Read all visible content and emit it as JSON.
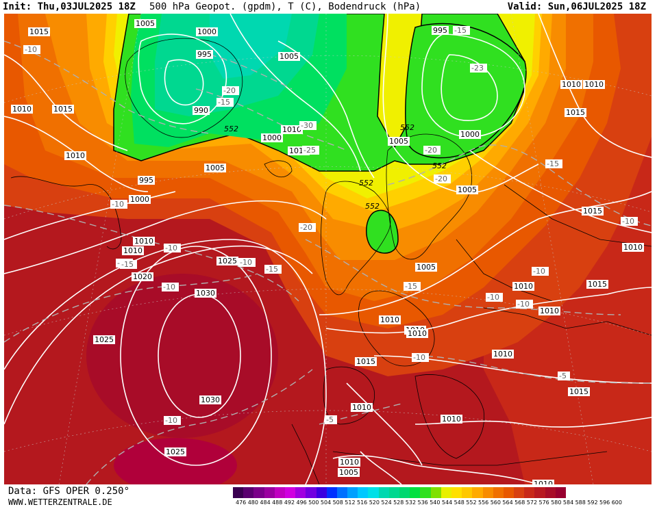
{
  "header": {
    "init": "Init: Thu,03JUL2025 18Z",
    "title": "500 hPa Geopot. (gpdm), T (C), Bodendruck (hPa)",
    "valid": "Valid: Sun,06JUL2025 18Z"
  },
  "footer": {
    "data_source": "Data: GFS OPER 0.250°",
    "website": "WWW.WETTERZENTRALE.DE"
  },
  "legend": {
    "ticks": [
      "476",
      "480",
      "484",
      "488",
      "492",
      "496",
      "500",
      "504",
      "508",
      "512",
      "516",
      "520",
      "524",
      "528",
      "532",
      "536",
      "540",
      "544",
      "548",
      "552",
      "556",
      "560",
      "564",
      "568",
      "572",
      "576",
      "580",
      "584",
      "588",
      "592",
      "596",
      "600"
    ],
    "colors": [
      "#3a0050",
      "#5a0070",
      "#7a008a",
      "#9a00a0",
      "#c000c0",
      "#d000e0",
      "#a000e0",
      "#7000e0",
      "#3a00e0",
      "#0030ff",
      "#0070ff",
      "#00a0ff",
      "#00c8ff",
      "#00e0e8",
      "#00d8b0",
      "#00d890",
      "#00d870",
      "#00e040",
      "#30e020",
      "#80e000",
      "#e8f000",
      "#ffe000",
      "#ffc800",
      "#ffaa00",
      "#f88c00",
      "#f07000",
      "#e85800",
      "#d84010",
      "#c82818",
      "#b81820",
      "#a80c28",
      "#980030"
    ]
  },
  "map": {
    "pressure_labels": [
      "1015",
      "1005",
      "1000",
      "995",
      "1010",
      "1015",
      "1005",
      "990",
      "995",
      "1000",
      "1010",
      "1005",
      "1000",
      "1010",
      "1005",
      "1010",
      "1005",
      "995",
      "1000",
      "1010",
      "1015",
      "1015",
      "1020",
      "1025",
      "1030",
      "1025",
      "1030",
      "1025",
      "1015",
      "1010",
      "1010",
      "1010",
      "1005",
      "1010",
      "1010",
      "1010",
      "1015",
      "1010",
      "1010",
      "1010",
      "1015",
      "1010",
      "1010",
      "1010",
      "1005",
      "1010",
      "1010"
    ],
    "temp_labels": [
      "-10",
      "-20",
      "-15",
      "-30",
      "-25",
      "-23",
      "-15",
      "-20",
      "-20",
      "-15",
      "-10",
      "-15",
      "-10",
      "-10",
      "-10",
      "-15",
      "-10",
      "-20",
      "-15",
      "-10",
      "-10",
      "-10",
      "-10",
      "-5",
      "-10",
      "-5",
      "-15"
    ],
    "height_labels": [
      "552",
      "552",
      "552",
      "552",
      "552"
    ]
  }
}
